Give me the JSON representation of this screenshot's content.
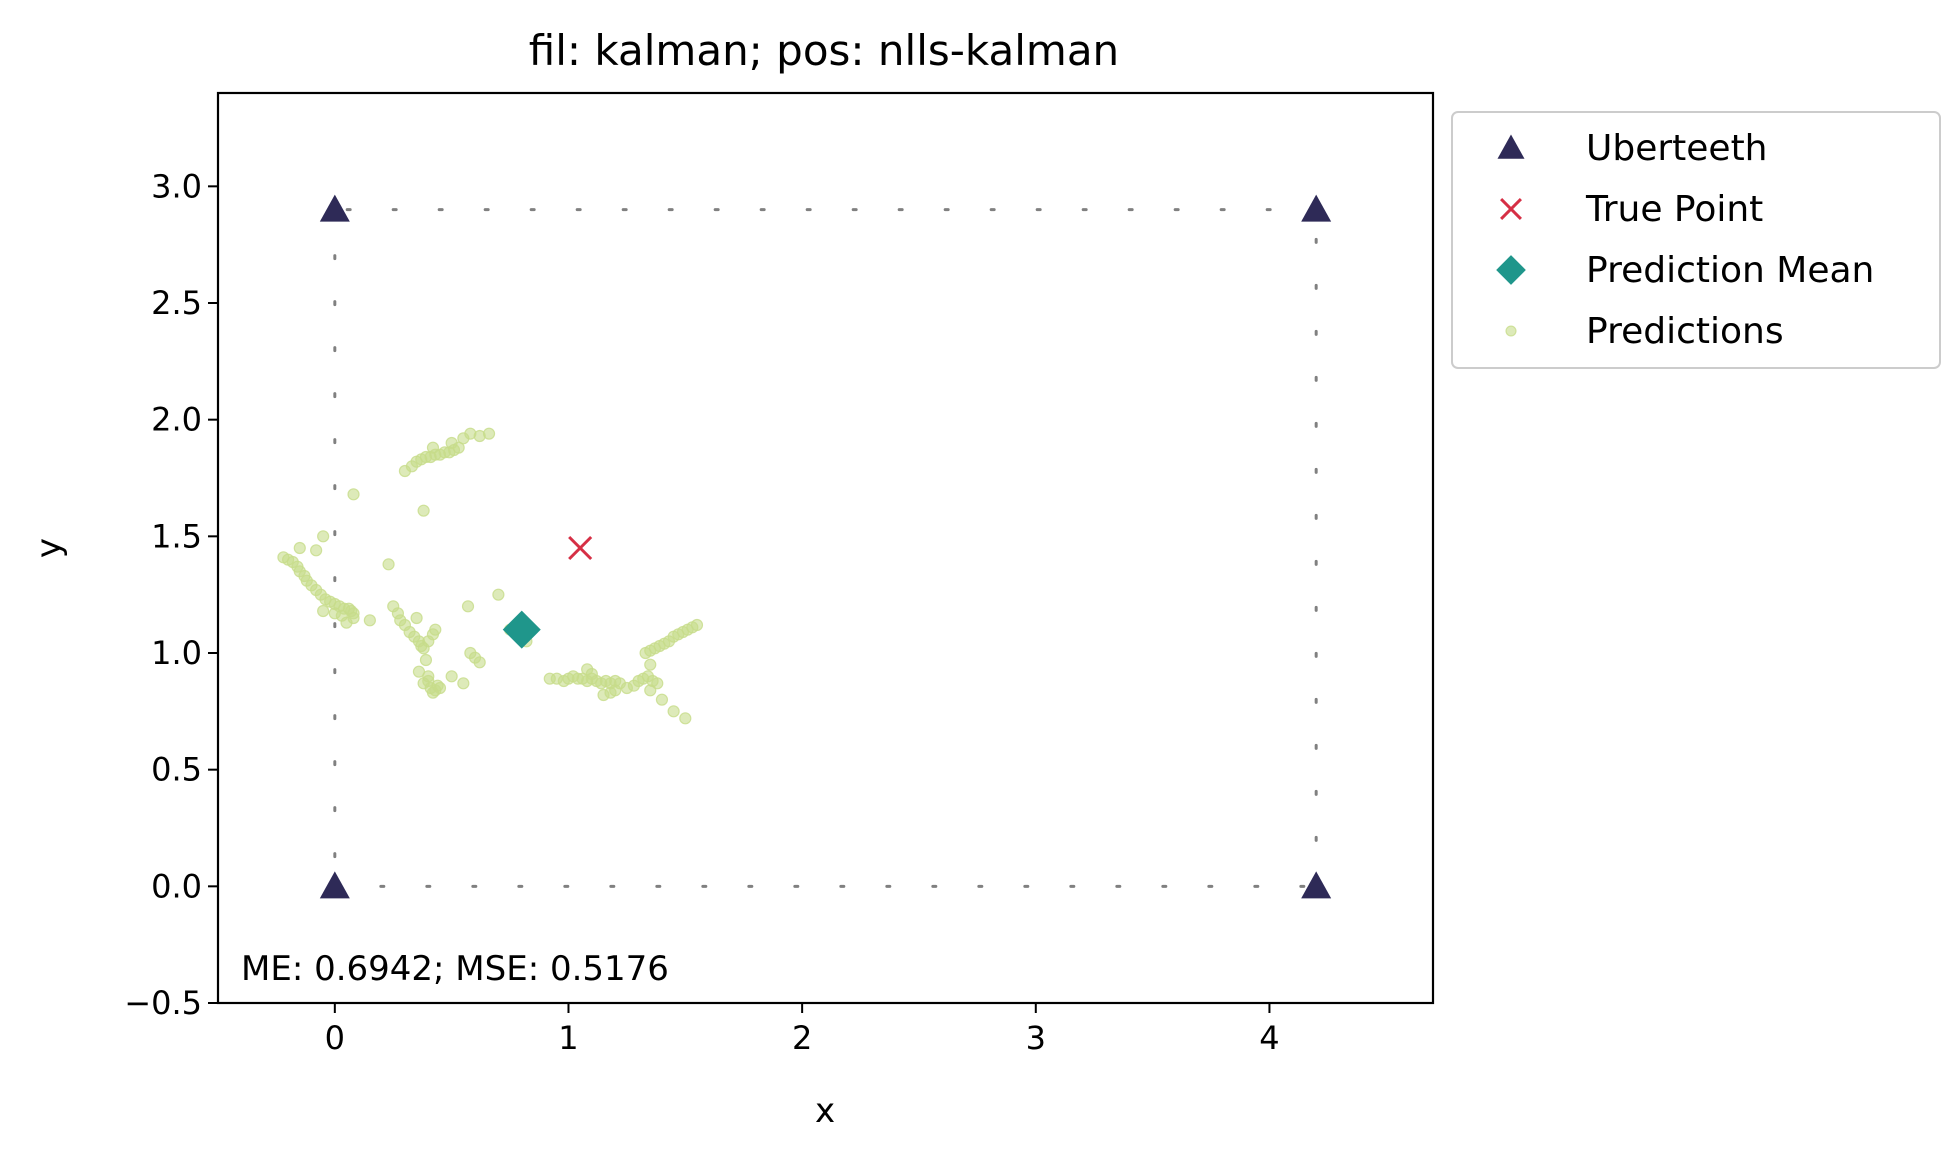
{
  "chart_data": {
    "type": "scatter",
    "title": "fil: kalman; pos: nlls-kalman",
    "xlabel": "x",
    "ylabel": "y",
    "xlim": [
      -0.5,
      4.7
    ],
    "ylim": [
      -0.5,
      3.4
    ],
    "x_ticks": [
      0,
      1,
      2,
      3,
      4
    ],
    "x_tick_labels": [
      "0",
      "1",
      "2",
      "3",
      "4"
    ],
    "y_ticks": [
      -0.5,
      0.0,
      0.5,
      1.0,
      1.5,
      2.0,
      2.5,
      3.0
    ],
    "y_tick_labels": [
      "−0.5",
      "0.0",
      "0.5",
      "1.0",
      "1.5",
      "2.0",
      "2.5",
      "3.0"
    ],
    "grid": false,
    "legend_placement": "outside-top-right",
    "annotation": "ME: 0.6942;  MSE: 0.5176",
    "boundary": {
      "x": [
        0,
        4.2,
        4.2,
        0,
        0
      ],
      "y": [
        0,
        0,
        2.9,
        2.9,
        0
      ],
      "color": "#808080"
    },
    "series": [
      {
        "name": "Uberteeth",
        "marker": "triangle",
        "color": "#2e2a57",
        "x": [
          0,
          4.2,
          0,
          4.2
        ],
        "y": [
          0,
          0,
          2.9,
          2.9
        ]
      },
      {
        "name": "True Point",
        "marker": "x",
        "color": "#d62f45",
        "x": [
          1.05
        ],
        "y": [
          1.45
        ]
      },
      {
        "name": "Prediction Mean",
        "marker": "diamond",
        "color": "#1f968b",
        "x": [
          0.8
        ],
        "y": [
          1.1
        ]
      },
      {
        "name": "Predictions",
        "marker": "dot",
        "color": "#c7dc8a",
        "x": [
          -0.22,
          -0.2,
          -0.18,
          -0.16,
          -0.15,
          -0.13,
          -0.12,
          -0.1,
          -0.08,
          -0.06,
          -0.04,
          -0.02,
          0.0,
          0.02,
          0.04,
          0.06,
          0.07,
          0.08,
          -0.15,
          -0.08,
          -0.05,
          0.0,
          0.03,
          0.05,
          0.08,
          0.15,
          -0.05,
          0.08,
          0.25,
          0.27,
          0.28,
          0.3,
          0.32,
          0.34,
          0.36,
          0.37,
          0.38,
          0.39,
          0.4,
          0.41,
          0.42,
          0.43,
          0.44,
          0.45,
          0.36,
          0.38,
          0.4,
          0.5,
          0.55,
          0.58,
          0.6,
          0.62,
          0.57,
          0.7,
          0.75,
          0.38,
          0.4,
          0.42,
          0.43,
          0.35,
          0.23,
          0.35,
          0.37,
          0.39,
          0.41,
          0.43,
          0.45,
          0.47,
          0.49,
          0.51,
          0.53,
          0.3,
          0.33,
          0.42,
          0.5,
          0.55,
          0.58,
          0.66,
          0.62,
          0.82,
          0.92,
          0.95,
          0.98,
          1.0,
          1.02,
          1.04,
          1.06,
          1.08,
          1.1,
          1.12,
          1.14,
          1.16,
          1.18,
          1.2,
          1.22,
          1.08,
          1.1,
          1.15,
          1.18,
          1.2,
          1.25,
          1.28,
          1.3,
          1.32,
          1.34,
          1.36,
          1.38,
          1.35,
          1.4,
          1.45,
          1.5,
          1.35,
          1.33,
          1.35,
          1.37,
          1.39,
          1.41,
          1.43,
          1.45,
          1.47,
          1.49,
          1.51,
          1.53,
          1.55
        ],
        "y": [
          1.41,
          1.4,
          1.39,
          1.37,
          1.35,
          1.33,
          1.31,
          1.29,
          1.27,
          1.25,
          1.23,
          1.22,
          1.21,
          1.2,
          1.19,
          1.19,
          1.18,
          1.17,
          1.45,
          1.44,
          1.5,
          1.17,
          1.16,
          1.13,
          1.15,
          1.14,
          1.18,
          1.68,
          1.2,
          1.17,
          1.14,
          1.12,
          1.09,
          1.07,
          1.05,
          1.03,
          1.02,
          0.97,
          0.9,
          0.85,
          0.83,
          0.84,
          0.86,
          0.85,
          0.92,
          0.87,
          0.88,
          0.9,
          0.87,
          1.0,
          0.98,
          0.96,
          1.2,
          1.25,
          1.1,
          1.61,
          1.05,
          1.08,
          1.1,
          1.15,
          1.38,
          1.82,
          1.83,
          1.84,
          1.84,
          1.85,
          1.85,
          1.86,
          1.86,
          1.87,
          1.88,
          1.78,
          1.8,
          1.88,
          1.9,
          1.92,
          1.94,
          1.94,
          1.93,
          1.05,
          0.89,
          0.89,
          0.88,
          0.89,
          0.9,
          0.89,
          0.89,
          0.88,
          0.89,
          0.88,
          0.87,
          0.88,
          0.87,
          0.88,
          0.87,
          0.93,
          0.91,
          0.82,
          0.83,
          0.84,
          0.85,
          0.86,
          0.88,
          0.89,
          0.9,
          0.88,
          0.87,
          0.84,
          0.8,
          0.75,
          0.72,
          0.95,
          1.0,
          1.01,
          1.02,
          1.03,
          1.04,
          1.05,
          1.07,
          1.08,
          1.09,
          1.1,
          1.11,
          1.12
        ]
      }
    ]
  }
}
